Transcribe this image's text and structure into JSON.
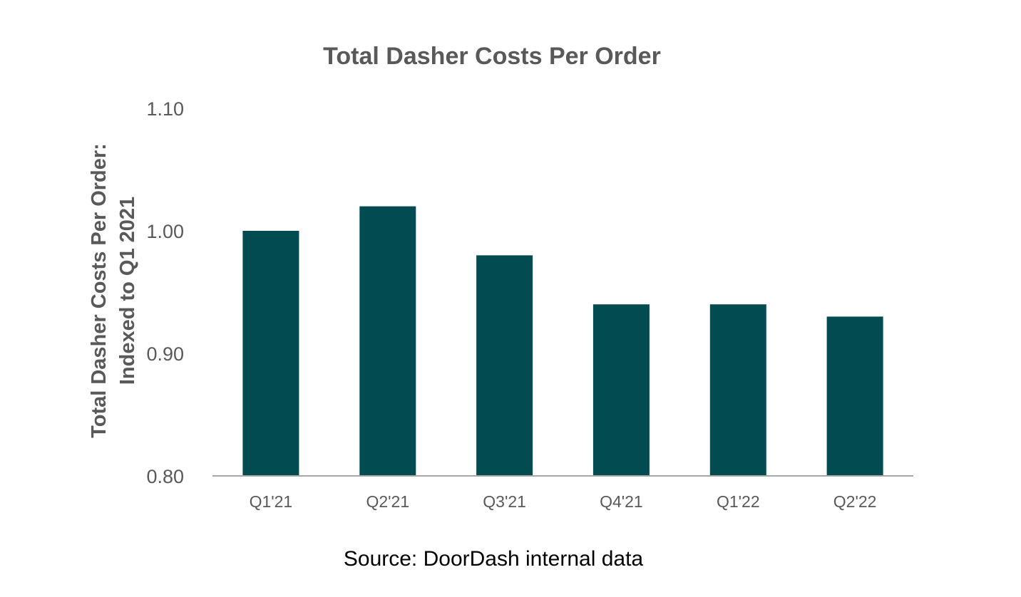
{
  "chart_data": {
    "type": "bar",
    "title": "Total Dasher Costs Per Order",
    "ylabel": [
      "Total Dasher Costs Per Order:",
      "Indexed to Q1 2021"
    ],
    "xlabel": "",
    "categories": [
      "Q1'21",
      "Q2'21",
      "Q3'21",
      "Q4'21",
      "Q1'22",
      "Q2'22"
    ],
    "values": [
      1.0,
      1.02,
      0.98,
      0.94,
      0.94,
      0.93
    ],
    "ylim": [
      0.8,
      1.1
    ],
    "yticks": [
      "1.10",
      "1.00",
      "0.90",
      "0.80"
    ],
    "ytick_values": [
      1.1,
      1.0,
      0.9,
      0.8
    ],
    "grid": false,
    "legend": "none",
    "colors": {
      "bar": "#024b51",
      "axis": "#a6a6a6",
      "tick_text": "#595959",
      "title": "#595959"
    }
  },
  "source": "Source: DoorDash internal data"
}
